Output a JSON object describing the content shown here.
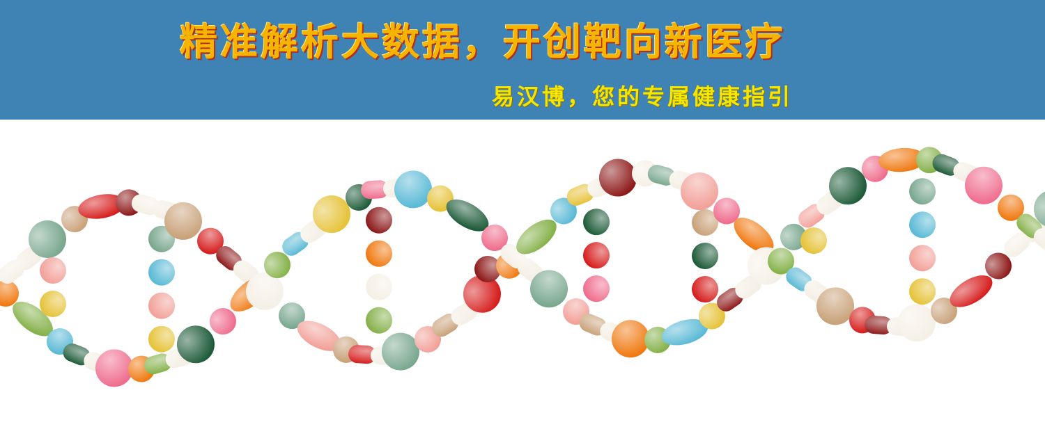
{
  "header": {
    "headline": "精准解析大数据，开创靶向新医疗",
    "subline": "易汉博，您的专属健康指引",
    "background_color": "#3f83b4",
    "headline_color": "#f5b400",
    "subline_color": "#f5e600"
  },
  "illustration": {
    "subject": "pill-dna-helix",
    "pill_colors": [
      "#8e1b1b",
      "#f07a12",
      "#f5f0e6",
      "#86b24b",
      "#7aa88f",
      "#5bbad6",
      "#f2a199",
      "#e6c33a",
      "#c9a27a",
      "#1f5c3a",
      "#d71f1f",
      "#ef6e8e"
    ]
  }
}
